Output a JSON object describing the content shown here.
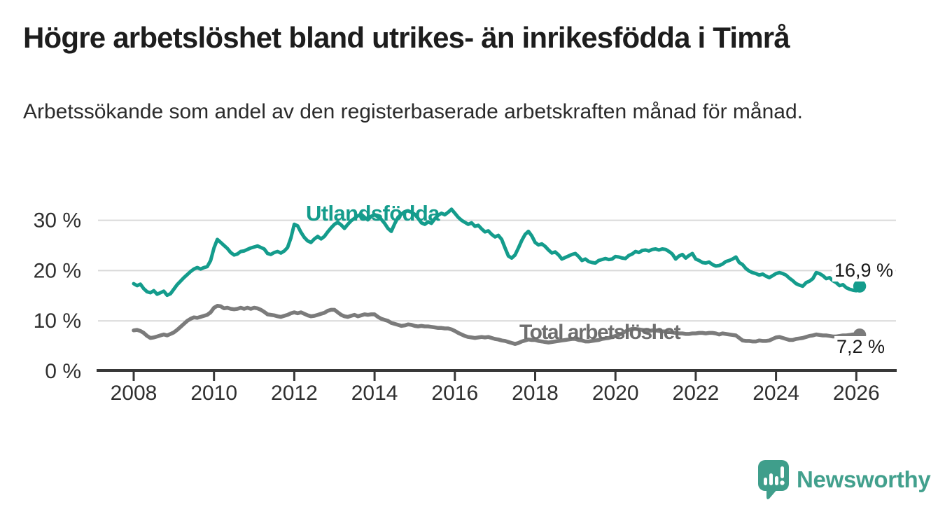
{
  "title": "Högre arbetslöshet bland utrikes- än inrikesfödda i Timrå",
  "subtitle": "Arbetssökande som andel av den registerbaserade arbetskraften månad för månad.",
  "logo": {
    "text": "Newsworthy",
    "icon": "speech-bubble-bar-chart-icon",
    "color": "#3f9e8b"
  },
  "colors": {
    "foreign_born_line": "#149c8c",
    "total_line": "#7b7b7b",
    "gridline": "#d9d9d9",
    "axis": "#383838",
    "tick_text": "#2f2f2f"
  },
  "chart_data": {
    "type": "line",
    "title": "Högre arbetslöshet bland utrikes- än inrikesfödda i Timrå",
    "xlabel": "",
    "ylabel": "",
    "grid": true,
    "legend_position": "inline-labels",
    "x_axis": {
      "start_year": 2008,
      "end_year": 2026.2,
      "tick_years": [
        2008,
        2010,
        2012,
        2014,
        2016,
        2018,
        2020,
        2022,
        2024,
        2026
      ],
      "tick_labels": [
        "2008",
        "2010",
        "2012",
        "2014",
        "2016",
        "2018",
        "2020",
        "2022",
        "2024",
        "2026"
      ]
    },
    "y_axis": {
      "ticks": [
        {
          "value": 0,
          "label": "0 %"
        },
        {
          "value": 10,
          "label": "10 %"
        },
        {
          "value": 20,
          "label": "20 %"
        },
        {
          "value": 30,
          "label": "30 %"
        }
      ],
      "ylim": [
        0,
        33.5
      ]
    },
    "series": [
      {
        "name": "Utlandsfödda",
        "color": "#149c8c",
        "stroke_width": 5,
        "start_year": 2008.0,
        "points_per_year": 12,
        "end_label": "16,9 %",
        "end_value": 16.9,
        "values": [
          17.4,
          17.0,
          17.3,
          16.4,
          15.8,
          15.6,
          16.0,
          15.3,
          15.6,
          15.9,
          15.1,
          15.4,
          16.3,
          17.2,
          17.9,
          18.6,
          19.2,
          19.8,
          20.3,
          20.6,
          20.3,
          20.6,
          20.8,
          22.0,
          24.5,
          26.2,
          25.6,
          25.0,
          24.4,
          23.6,
          23.1,
          23.3,
          23.8,
          23.9,
          24.2,
          24.5,
          24.7,
          24.9,
          24.6,
          24.3,
          23.4,
          23.2,
          23.6,
          23.8,
          23.5,
          23.9,
          24.6,
          26.5,
          29.2,
          28.9,
          27.6,
          26.6,
          25.9,
          25.6,
          26.3,
          26.8,
          26.3,
          26.8,
          27.7,
          28.5,
          29.2,
          29.6,
          29.1,
          28.4,
          29.2,
          29.9,
          30.4,
          30.9,
          31.2,
          30.6,
          30.1,
          30.8,
          31.1,
          30.7,
          30.2,
          29.4,
          28.4,
          27.8,
          29.3,
          30.6,
          31.2,
          31.7,
          31.9,
          31.6,
          31.2,
          30.4,
          29.5,
          29.2,
          29.7,
          29.4,
          30.3,
          31.0,
          31.4,
          31.1,
          31.6,
          32.2,
          31.4,
          30.6,
          30.0,
          29.6,
          29.2,
          29.5,
          28.8,
          29.0,
          28.3,
          27.7,
          27.9,
          27.2,
          26.7,
          27.0,
          26.2,
          24.5,
          22.9,
          22.5,
          23.1,
          24.5,
          26.0,
          27.2,
          27.8,
          26.9,
          25.6,
          25.1,
          25.3,
          24.8,
          24.1,
          23.5,
          23.7,
          23.1,
          22.3,
          22.6,
          22.9,
          23.2,
          23.4,
          22.8,
          22.0,
          22.3,
          21.8,
          21.6,
          21.5,
          22.0,
          22.2,
          22.4,
          22.2,
          22.3,
          22.8,
          22.7,
          22.5,
          22.4,
          23.0,
          23.3,
          23.8,
          23.6,
          24.0,
          24.1,
          23.9,
          24.2,
          24.3,
          24.1,
          24.3,
          24.2,
          23.8,
          23.3,
          22.3,
          22.9,
          23.2,
          22.5,
          23.0,
          23.4,
          22.3,
          22.0,
          21.6,
          21.5,
          21.7,
          21.2,
          20.9,
          21.0,
          21.3,
          21.8,
          22.0,
          22.3,
          22.7,
          21.6,
          21.2,
          20.4,
          19.9,
          19.6,
          19.4,
          19.1,
          19.3,
          18.9,
          18.6,
          19.0,
          19.4,
          19.6,
          19.4,
          19.1,
          18.5,
          18.0,
          17.4,
          17.1,
          16.9,
          17.6,
          17.9,
          18.4,
          19.6,
          19.4,
          19.0,
          18.4,
          18.6,
          18.0,
          17.6,
          17.0,
          17.2,
          16.6,
          16.3,
          16.1,
          16.0,
          16.9
        ]
      },
      {
        "name": "Total arbetslöshet",
        "color": "#7b7b7b",
        "stroke_width": 5.5,
        "start_year": 2008.0,
        "points_per_year": 12,
        "end_label": "7,2 %",
        "end_value": 7.2,
        "values": [
          8.1,
          8.2,
          8.0,
          7.6,
          7.0,
          6.6,
          6.7,
          6.9,
          7.1,
          7.3,
          7.1,
          7.4,
          7.7,
          8.2,
          8.8,
          9.4,
          10.0,
          10.4,
          10.7,
          10.6,
          10.8,
          11.0,
          11.2,
          11.7,
          12.6,
          13.0,
          12.9,
          12.5,
          12.6,
          12.4,
          12.3,
          12.4,
          12.6,
          12.4,
          12.6,
          12.4,
          12.6,
          12.5,
          12.2,
          11.8,
          11.3,
          11.2,
          11.1,
          10.9,
          10.8,
          11.0,
          11.2,
          11.5,
          11.7,
          11.5,
          11.7,
          11.4,
          11.1,
          10.9,
          11.0,
          11.2,
          11.4,
          11.6,
          12.0,
          12.2,
          12.2,
          11.7,
          11.2,
          10.9,
          10.8,
          11.0,
          11.2,
          10.9,
          11.1,
          11.3,
          11.2,
          11.3,
          11.3,
          10.8,
          10.4,
          10.2,
          10.0,
          9.6,
          9.4,
          9.2,
          9.0,
          9.1,
          9.3,
          9.2,
          9.0,
          8.9,
          9.0,
          8.9,
          8.9,
          8.8,
          8.7,
          8.6,
          8.6,
          8.5,
          8.5,
          8.3,
          8.0,
          7.6,
          7.3,
          7.0,
          6.8,
          6.7,
          6.6,
          6.7,
          6.8,
          6.7,
          6.8,
          6.6,
          6.4,
          6.3,
          6.1,
          6.0,
          5.8,
          5.6,
          5.4,
          5.6,
          5.9,
          6.1,
          6.3,
          6.2,
          6.2,
          6.0,
          5.9,
          5.8,
          5.7,
          5.8,
          5.9,
          6.0,
          6.1,
          6.2,
          6.3,
          6.4,
          6.4,
          6.2,
          6.1,
          5.9,
          5.9,
          6.0,
          6.1,
          6.2,
          6.4,
          6.5,
          6.6,
          6.8,
          7.0,
          7.2,
          7.5,
          7.9,
          8.2,
          8.4,
          8.4,
          8.3,
          8.2,
          8.1,
          8.0,
          8.1,
          8.1,
          8.0,
          7.9,
          7.9,
          7.8,
          7.7,
          7.6,
          7.5,
          7.5,
          7.4,
          7.4,
          7.5,
          7.5,
          7.6,
          7.6,
          7.5,
          7.6,
          7.6,
          7.5,
          7.3,
          7.5,
          7.4,
          7.3,
          7.2,
          7.1,
          6.6,
          6.1,
          6.0,
          6.0,
          5.9,
          5.9,
          6.1,
          6.0,
          6.0,
          6.1,
          6.4,
          6.7,
          6.8,
          6.6,
          6.4,
          6.2,
          6.2,
          6.4,
          6.5,
          6.6,
          6.8,
          7.0,
          7.1,
          7.3,
          7.2,
          7.1,
          7.1,
          7.0,
          6.9,
          6.9,
          7.0,
          7.1,
          7.1,
          7.2,
          7.3,
          7.3,
          7.2
        ]
      }
    ]
  }
}
